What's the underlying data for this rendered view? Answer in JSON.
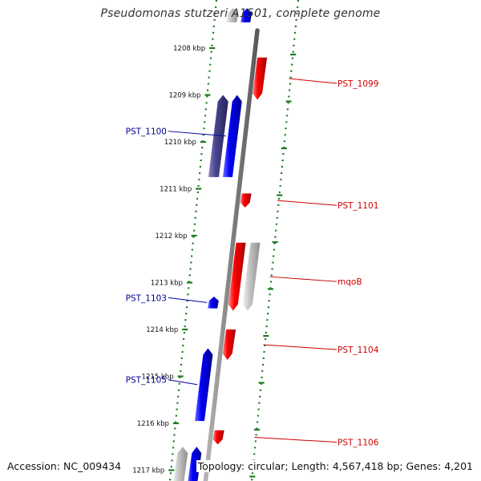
{
  "title": "Pseudomonas stutzeri A1501, complete genome",
  "footer": {
    "accession": "Accession: NC_009434",
    "summary": "Topology: circular; Length: 4,567,418 bp; Genes: 4,201"
  },
  "colors": {
    "forward_strand": "#0000ff",
    "reverse_strand": "#ff0000",
    "gray_feature": "#c8c8c8",
    "dark_feature": "#4a4690",
    "backbone": "#808080",
    "tick": "#1a7a1a",
    "forward_label": "#000099",
    "reverse_label": "#cc0000"
  },
  "chart_data": {
    "type": "genome_map",
    "unit": "kbp",
    "ticks": [
      {
        "kbp": 1208,
        "label": "1208 kbp"
      },
      {
        "kbp": 1209,
        "label": "1209 kbp"
      },
      {
        "kbp": 1210,
        "label": "1210 kbp"
      },
      {
        "kbp": 1211,
        "label": "1211 kbp"
      },
      {
        "kbp": 1212,
        "label": "1212 kbp"
      },
      {
        "kbp": 1213,
        "label": "1213 kbp"
      },
      {
        "kbp": 1214,
        "label": "1214 kbp"
      },
      {
        "kbp": 1215,
        "label": "1215 kbp"
      },
      {
        "kbp": 1216,
        "label": "1216 kbp"
      },
      {
        "kbp": 1217,
        "label": "1217 kbp"
      }
    ],
    "features": [
      {
        "label": "",
        "strand": "forward",
        "start": 1207.15,
        "end": 1207.45,
        "color": "blue",
        "lane": 1
      },
      {
        "label": "",
        "strand": "forward",
        "start": 1207.15,
        "end": 1207.45,
        "color": "gray",
        "lane": 2
      },
      {
        "label": "PST_1099",
        "strand": "reverse",
        "start": 1208.2,
        "end": 1209.1,
        "color": "red",
        "lane": 1
      },
      {
        "label": "",
        "strand": "forward",
        "start": 1209.0,
        "end": 1210.75,
        "color": "dark",
        "lane": 2
      },
      {
        "label": "PST_1100",
        "strand": "forward",
        "start": 1209.0,
        "end": 1210.75,
        "color": "blue",
        "lane": 1
      },
      {
        "label": "PST_1101",
        "strand": "reverse",
        "start": 1211.1,
        "end": 1211.4,
        "color": "red",
        "lane": 1
      },
      {
        "label": "",
        "strand": "reverse",
        "start": 1212.15,
        "end": 1213.6,
        "color": "red",
        "lane": 1
      },
      {
        "label": "mqoB",
        "strand": "reverse",
        "start": 1212.15,
        "end": 1213.6,
        "color": "gray",
        "lane": 2
      },
      {
        "label": "PST_1103",
        "strand": "forward",
        "start": 1213.3,
        "end": 1213.55,
        "color": "blue",
        "lane": 1
      },
      {
        "label": "PST_1104",
        "strand": "reverse",
        "start": 1214.0,
        "end": 1214.65,
        "color": "red",
        "lane": 1
      },
      {
        "label": "PST_1105",
        "strand": "forward",
        "start": 1214.4,
        "end": 1215.95,
        "color": "blue",
        "lane": 1
      },
      {
        "label": "PST_1106",
        "strand": "reverse",
        "start": 1216.15,
        "end": 1216.45,
        "color": "red",
        "lane": 1
      },
      {
        "label": "",
        "strand": "forward",
        "start": 1216.5,
        "end": 1217.5,
        "color": "blue",
        "lane": 1
      },
      {
        "label": "",
        "strand": "forward",
        "start": 1216.5,
        "end": 1217.5,
        "color": "gray",
        "lane": 2
      }
    ]
  }
}
